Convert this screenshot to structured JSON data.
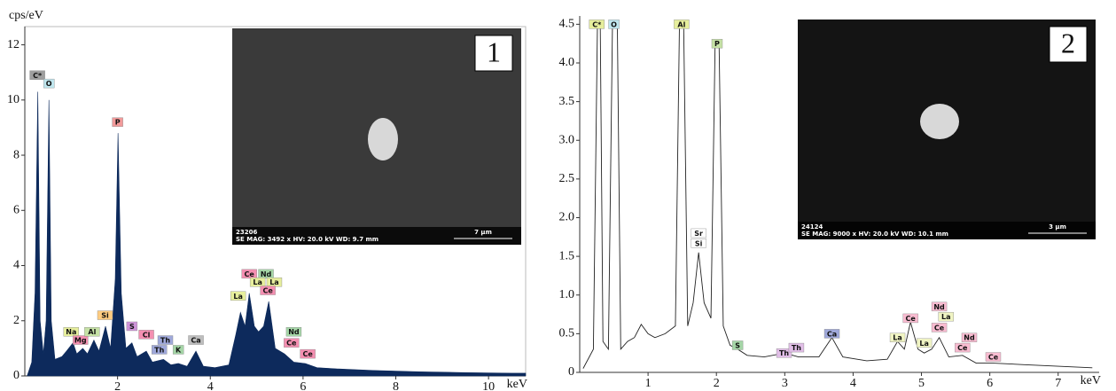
{
  "chart_data": [
    {
      "type": "area",
      "ylabel": "cps/eV",
      "xlabel": "keV",
      "color": "#0d2a5c",
      "xlim": [
        0,
        10.8
      ],
      "ylim": [
        0,
        12.5
      ],
      "xticks": [
        2,
        4,
        6,
        8,
        10
      ],
      "yticks": [
        0,
        2,
        4,
        6,
        8,
        10,
        12
      ],
      "x": [
        0.05,
        0.15,
        0.22,
        0.28,
        0.33,
        0.4,
        0.46,
        0.52,
        0.57,
        0.65,
        0.8,
        0.9,
        1.04,
        1.12,
        1.25,
        1.35,
        1.49,
        1.6,
        1.74,
        1.85,
        1.95,
        2.01,
        2.08,
        2.18,
        2.31,
        2.42,
        2.62,
        2.75,
        2.99,
        3.15,
        3.31,
        3.5,
        3.69,
        3.85,
        4.1,
        4.4,
        4.55,
        4.65,
        4.75,
        4.84,
        4.95,
        5.04,
        5.15,
        5.26,
        5.4,
        5.6,
        5.8,
        6.05,
        6.3,
        6.8,
        7.5,
        8.5,
        9.5,
        10.5,
        10.8
      ],
      "values": [
        0,
        0.5,
        3,
        10.3,
        2,
        0.8,
        2,
        10,
        2,
        0.6,
        0.7,
        0.9,
        1.2,
        0.8,
        1.0,
        0.8,
        1.3,
        0.9,
        1.8,
        1.0,
        3.5,
        8.8,
        3,
        1.0,
        1.2,
        0.7,
        0.9,
        0.5,
        0.6,
        0.4,
        0.45,
        0.35,
        0.9,
        0.35,
        0.3,
        0.4,
        1.5,
        2.3,
        1.8,
        3.0,
        1.8,
        1.6,
        1.8,
        2.7,
        1.0,
        0.8,
        0.5,
        0.45,
        0.3,
        0.25,
        0.2,
        0.15,
        0.12,
        0.1,
        0.1
      ],
      "annotations": [
        {
          "text": "C*",
          "x": 0.27,
          "y": 10.9,
          "color": "#9e9e9e"
        },
        {
          "text": "O",
          "x": 0.52,
          "y": 10.6,
          "color": "#bfe6ee"
        },
        {
          "text": "P",
          "x": 2.0,
          "y": 9.2,
          "color": "#f29a9a"
        },
        {
          "text": "Na",
          "x": 1.0,
          "y": 1.6,
          "color": "#e6ee9c"
        },
        {
          "text": "Mg",
          "x": 1.2,
          "y": 1.3,
          "color": "#f48fb1"
        },
        {
          "text": "Al",
          "x": 1.45,
          "y": 1.6,
          "color": "#c5e1a5"
        },
        {
          "text": "Si",
          "x": 1.73,
          "y": 2.2,
          "color": "#ffcc80"
        },
        {
          "text": "S",
          "x": 2.31,
          "y": 1.8,
          "color": "#ce93d8"
        },
        {
          "text": "Cl",
          "x": 2.62,
          "y": 1.5,
          "color": "#f48fb1"
        },
        {
          "text": "Th",
          "x": 3.03,
          "y": 1.3,
          "color": "#9fa8da"
        },
        {
          "text": "Th",
          "x": 2.9,
          "y": 0.95,
          "color": "#9fa8da"
        },
        {
          "text": "K",
          "x": 3.31,
          "y": 0.95,
          "color": "#a5d6a7"
        },
        {
          "text": "Ca",
          "x": 3.69,
          "y": 1.3,
          "color": "#bdbdbd"
        },
        {
          "text": "La",
          "x": 4.6,
          "y": 2.9,
          "color": "#e6ee9c"
        },
        {
          "text": "Ce",
          "x": 4.84,
          "y": 3.7,
          "color": "#f48fb1"
        },
        {
          "text": "Nd",
          "x": 5.2,
          "y": 3.7,
          "color": "#a5d6a7"
        },
        {
          "text": "La",
          "x": 5.02,
          "y": 3.4,
          "color": "#e6ee9c"
        },
        {
          "text": "La",
          "x": 5.38,
          "y": 3.4,
          "color": "#e6ee9c"
        },
        {
          "text": "Ce",
          "x": 5.24,
          "y": 3.1,
          "color": "#f48fb1"
        },
        {
          "text": "Nd",
          "x": 5.8,
          "y": 1.6,
          "color": "#a5d6a7"
        },
        {
          "text": "Ce",
          "x": 5.75,
          "y": 1.2,
          "color": "#f48fb1"
        },
        {
          "text": "Ce",
          "x": 6.1,
          "y": 0.8,
          "color": "#f48fb1"
        }
      ],
      "inset": {
        "panel": "1",
        "id": "23206",
        "caption": "SE MAG: 3492 x HV: 20.0 kV WD: 9.7 mm",
        "scale": "7 µm"
      }
    },
    {
      "type": "line",
      "xlabel": "keV",
      "color": "#222222",
      "xlim": [
        0,
        7.6
      ],
      "ylim": [
        0,
        4.55
      ],
      "xticks": [
        1,
        2,
        3,
        4,
        5,
        6,
        7
      ],
      "yticks": [
        0,
        0.5,
        {
          "value": 1,
          "label": "1.0"
        },
        1.5,
        {
          "value": 2,
          "label": "2.0"
        },
        2.5,
        {
          "value": 3,
          "label": "3.0"
        },
        3.5,
        {
          "value": 4,
          "label": "4.0"
        },
        4.5
      ],
      "x": [
        0.05,
        0.2,
        0.26,
        0.3,
        0.34,
        0.42,
        0.48,
        0.55,
        0.6,
        0.7,
        0.8,
        0.9,
        1.0,
        1.1,
        1.25,
        1.4,
        1.46,
        1.52,
        1.58,
        1.66,
        1.74,
        1.82,
        1.92,
        1.98,
        2.04,
        2.1,
        2.2,
        2.31,
        2.45,
        2.7,
        3.0,
        3.2,
        3.5,
        3.69,
        3.85,
        4.2,
        4.5,
        4.65,
        4.75,
        4.84,
        4.95,
        5.04,
        5.15,
        5.26,
        5.4,
        5.6,
        5.8,
        6.05,
        6.5,
        7.0,
        7.5
      ],
      "values": [
        0.05,
        0.3,
        4.55,
        4.55,
        0.4,
        0.3,
        4.55,
        4.55,
        0.3,
        0.4,
        0.45,
        0.62,
        0.5,
        0.45,
        0.5,
        0.6,
        4.55,
        4.55,
        0.6,
        0.9,
        1.55,
        0.9,
        0.7,
        4.2,
        4.2,
        0.6,
        0.35,
        0.3,
        0.22,
        0.2,
        0.25,
        0.2,
        0.2,
        0.45,
        0.2,
        0.15,
        0.17,
        0.4,
        0.3,
        0.65,
        0.3,
        0.25,
        0.3,
        0.45,
        0.2,
        0.22,
        0.12,
        0.12,
        0.1,
        0.08,
        0.06
      ],
      "annotations": [
        {
          "text": "C*",
          "x": 0.25,
          "y": 4.5,
          "color": "#e6ee9c"
        },
        {
          "text": "O",
          "x": 0.5,
          "y": 4.5,
          "color": "#bfe6ee"
        },
        {
          "text": "Al",
          "x": 1.49,
          "y": 4.5,
          "color": "#e6ee9c"
        },
        {
          "text": "P",
          "x": 2.01,
          "y": 4.25,
          "color": "#c5e1a5"
        },
        {
          "text": "Sr",
          "x": 1.74,
          "y": 1.8,
          "color": "#ffffff"
        },
        {
          "text": "Si",
          "x": 1.74,
          "y": 1.67,
          "color": "#ffffff"
        },
        {
          "text": "S",
          "x": 2.31,
          "y": 0.35,
          "color": "#a5d6a7"
        },
        {
          "text": "Th",
          "x": 2.99,
          "y": 0.25,
          "color": "#e1bee7"
        },
        {
          "text": "Th",
          "x": 3.17,
          "y": 0.32,
          "color": "#e1bee7"
        },
        {
          "text": "Ca",
          "x": 3.69,
          "y": 0.5,
          "color": "#9fa8da"
        },
        {
          "text": "La",
          "x": 4.65,
          "y": 0.45,
          "color": "#f0f4c3"
        },
        {
          "text": "Ce",
          "x": 4.84,
          "y": 0.7,
          "color": "#f8bbd0"
        },
        {
          "text": "La",
          "x": 5.04,
          "y": 0.38,
          "color": "#f0f4c3"
        },
        {
          "text": "Nd",
          "x": 5.26,
          "y": 0.85,
          "color": "#f8bbd0"
        },
        {
          "text": "La",
          "x": 5.36,
          "y": 0.72,
          "color": "#f0f4c3"
        },
        {
          "text": "Ce",
          "x": 5.26,
          "y": 0.58,
          "color": "#f8bbd0"
        },
        {
          "text": "Nd",
          "x": 5.7,
          "y": 0.45,
          "color": "#f8bbd0"
        },
        {
          "text": "Ce",
          "x": 5.6,
          "y": 0.32,
          "color": "#f8bbd0"
        },
        {
          "text": "Ce",
          "x": 6.05,
          "y": 0.2,
          "color": "#f8bbd0"
        }
      ],
      "inset": {
        "panel": "2",
        "id": "24124",
        "caption": "SE MAG: 9000 x HV: 20.0 kV WD: 10.1 mm",
        "scale": "3 µm"
      }
    }
  ]
}
